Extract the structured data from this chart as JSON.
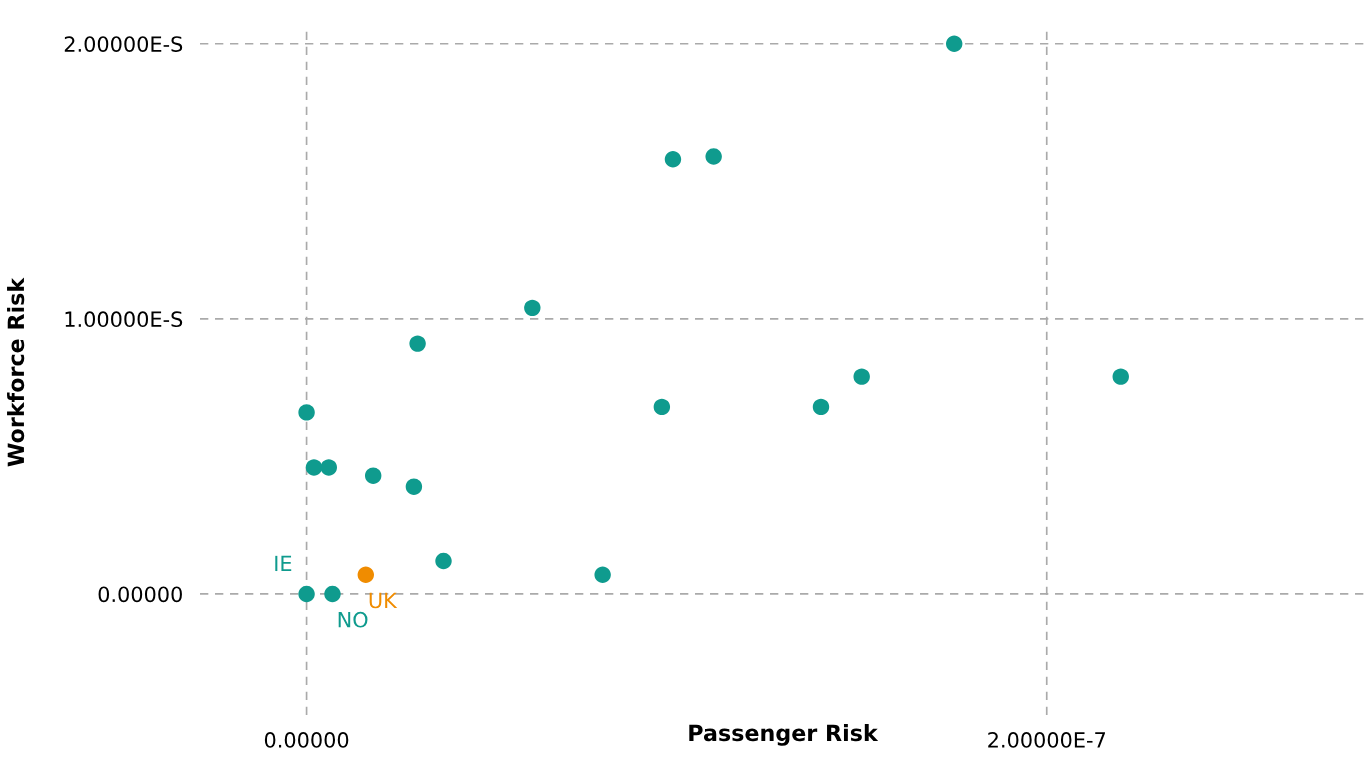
{
  "chart_data": {
    "type": "scatter",
    "xlabel": "Passenger Risk",
    "ylabel": "Workforce Risk",
    "xlim": [
      -2.88e-08,
      2.86e-07
    ],
    "ylim": [
      -0.44,
      2.05
    ],
    "xticks": [
      {
        "value": 0,
        "label": "0.00000"
      },
      {
        "value": 2e-07,
        "label": "2.00000E-7"
      }
    ],
    "yticks": [
      {
        "value": 0,
        "label": "0.00000"
      },
      {
        "value": 1,
        "label": "1.00000E-S"
      },
      {
        "value": 2,
        "label": "2.00000E-S"
      }
    ],
    "grid": true,
    "legend": false,
    "marker": "circle",
    "series": [
      {
        "color": "#0f9b8e",
        "x": [
          1.75e-07,
          9.9e-08,
          1.1e-07,
          6.1e-08,
          3e-08,
          0,
          9.6e-08,
          1.39e-07,
          1.5e-07,
          2.2e-07,
          2e-09,
          6e-09,
          1.8e-08,
          2.9e-08,
          3.7e-08,
          8e-08,
          0,
          7e-09
        ],
        "values": [
          2.0,
          1.58,
          1.59,
          1.04,
          0.91,
          0.66,
          0.68,
          0.68,
          0.79,
          0.79,
          0.46,
          0.46,
          0.43,
          0.39,
          0.12,
          0.07,
          0,
          0
        ]
      },
      {
        "color": "#f08c00",
        "x": [
          1.6e-08
        ],
        "values": [
          0.07
        ]
      }
    ],
    "annotations": [
      {
        "text": "IE",
        "x": 0,
        "y": 0
      },
      {
        "text": "NO",
        "x": 7e-09,
        "y": 0
      },
      {
        "text": "UK",
        "x": 1.6e-08,
        "y": 0.07
      }
    ]
  }
}
